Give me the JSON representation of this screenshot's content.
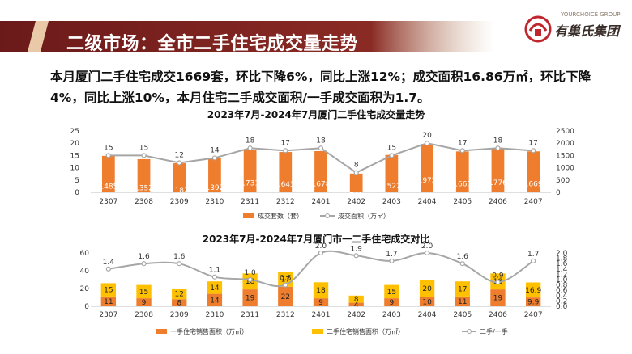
{
  "header": {
    "title": "二级市场：全市二手住宅成交量走势",
    "logo_small": "YOURCHOICE GROUP",
    "logo_big": "有巢氏集团"
  },
  "summary": "本月厦门二手住宅成交1669套，环比下降6%，同比上涨12%；成交面积16.86万㎡，环比下降4%，同比上涨10%，本月住宅二手成交面积/一手成交面积为1.7。",
  "colors": {
    "banner": "#7a1f1f",
    "bar_orange": "#ee7d2e",
    "bar_yellow": "#ffc000",
    "line_gray": "#a6a6a6"
  },
  "chart_data": [
    {
      "type": "bar",
      "title": "2023年7月-2024年7月厦门二手住宅成交量走势",
      "categories": [
        "2307",
        "2308",
        "2309",
        "2310",
        "2311",
        "2312",
        "2401",
        "2402",
        "2403",
        "2404",
        "2405",
        "2406",
        "2407"
      ],
      "y_left_ticks": [
        "0",
        "5",
        "10",
        "15",
        "20",
        "25"
      ],
      "y_right_ticks": [
        "0",
        "500",
        "1000",
        "1500",
        "2000",
        "2500"
      ],
      "ylim_left": [
        0,
        25
      ],
      "ylim_right": [
        0,
        2500
      ],
      "series": [
        {
          "name": "成交套数（套）",
          "type": "bar",
          "axis": "right",
          "values": [
            1485,
            1352,
            1182,
            1392,
            1731,
            1643,
            1678,
            761,
            1522,
            1972,
            1667,
            1776,
            1669
          ]
        },
        {
          "name": "成交面积（万㎡）",
          "type": "line",
          "axis": "left",
          "values": [
            15,
            15,
            12,
            14,
            18,
            17,
            18,
            8,
            15,
            20,
            17,
            18,
            17
          ]
        }
      ],
      "legend": "bottom"
    },
    {
      "type": "bar",
      "title": "2023年7月-2024年7月厦门市一二手住宅成交对比",
      "categories": [
        "2307",
        "2308",
        "2309",
        "2310",
        "2311",
        "2312",
        "2401",
        "2402",
        "2403",
        "2404",
        "2405",
        "2406",
        "2407"
      ],
      "y_left_ticks": [
        "0",
        "20",
        "40",
        "60"
      ],
      "y_right_ticks": [
        "0.0",
        "0.2",
        "0.4",
        "0.6",
        "0.8",
        "1.0",
        "1.2",
        "1.4",
        "1.6",
        "1.8",
        "2.0"
      ],
      "ylim_left": [
        0,
        60
      ],
      "ylim_right": [
        0,
        2.0
      ],
      "series": [
        {
          "name": "一手住宅销售面积（万㎡）",
          "type": "stacked-bar",
          "axis": "left",
          "values": [
            11,
            9,
            8,
            14,
            19,
            22,
            9,
            4,
            9,
            10,
            11,
            19,
            9.9
          ],
          "labels": [
            "11",
            "9",
            "8",
            "14",
            "19",
            "22",
            "9",
            "4",
            "9",
            "10",
            "11",
            "19",
            "9.9"
          ]
        },
        {
          "name": "二手住宅销售面积（万㎡）",
          "type": "stacked-bar",
          "axis": "left",
          "values": [
            15,
            15,
            12,
            14,
            18,
            17,
            18,
            8,
            15,
            20,
            17,
            18,
            16.9
          ],
          "labels": [
            "15",
            "15",
            "12",
            "14",
            "18",
            "17",
            "18",
            "8",
            "15",
            "20",
            "17",
            "18",
            "16.9"
          ]
        },
        {
          "name": "二手/一手",
          "type": "line",
          "axis": "right",
          "values": [
            1.4,
            1.6,
            1.6,
            1.1,
            1.0,
            0.8,
            2.0,
            1.9,
            1.7,
            2.0,
            1.6,
            0.9,
            1.7
          ],
          "labels": [
            "1.4",
            "1.6",
            "1.6",
            "1.1",
            "1.0",
            "0.8",
            "2.0",
            "1.9",
            "1.7",
            "2.0",
            "1.6",
            "0.9",
            "1.7"
          ]
        }
      ],
      "legend": "bottom"
    }
  ]
}
